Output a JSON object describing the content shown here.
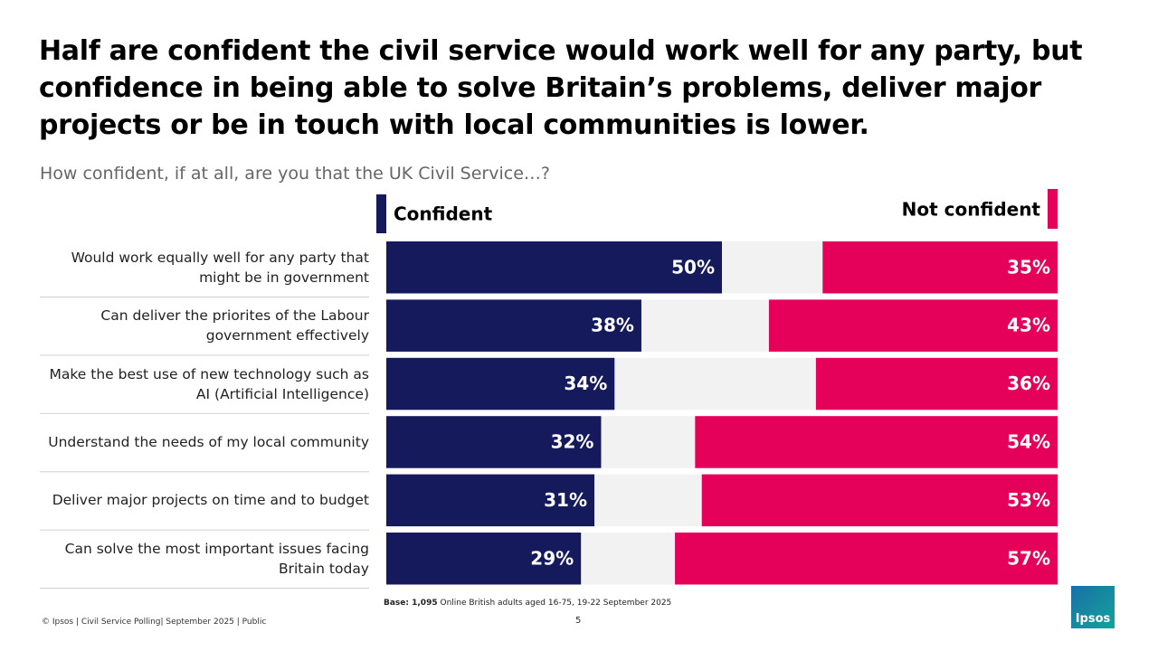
{
  "chart_data": {
    "type": "diverging-bar",
    "title": "Half are confident the civil service would work well for any party, but confidence in being able to solve Britain’s problems, deliver major projects or be in touch with local communities is lower.",
    "subtitle": "How confident, if at all, are you that the UK Civil Service…?",
    "categories": [
      "Would work equally well for any party that might be in government",
      "Can deliver the priorites of the Labour government effectively",
      "Make the best use of new technology such as AI (Artificial Intelligence)",
      "Understand the needs of my local community",
      "Deliver major projects on time and to budget",
      "Can solve the most important issues facing Britain today"
    ],
    "xlim": [
      0,
      100
    ],
    "series": [
      {
        "name": "Confident",
        "color": "#151a5c",
        "side": "left",
        "values": [
          50,
          38,
          34,
          32,
          31,
          29
        ],
        "value_labels": [
          "50%",
          "38%",
          "34%",
          "32%",
          "31%",
          "29%"
        ]
      },
      {
        "name": "Not confident",
        "color": "#e5005a",
        "side": "right",
        "values": [
          35,
          43,
          36,
          54,
          53,
          57
        ],
        "value_labels": [
          "35%",
          "43%",
          "36%",
          "54%",
          "53%",
          "57%"
        ]
      }
    ],
    "base_label": "Base: 1,095",
    "base_text": "Online British adults aged 16-75, 19-22 September 2025",
    "footer": "© Ipsos | Civil Service Polling| September 2025 | Public",
    "page_number": "5",
    "logo": "Ipsos"
  }
}
